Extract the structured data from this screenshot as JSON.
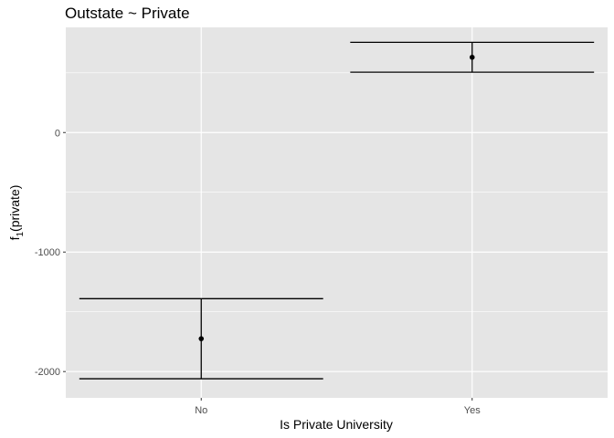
{
  "chart_data": {
    "type": "errorbar",
    "title": "Outstate ~ Private",
    "xlabel": "Is Private University",
    "ylabel": {
      "base": "f",
      "subscript": "1",
      "suffix": "(private)"
    },
    "categories": [
      "No",
      "Yes"
    ],
    "points": [
      {
        "x": "No",
        "y": -1725,
        "ymin": -2060,
        "ymax": -1390
      },
      {
        "x": "Yes",
        "y": 630,
        "ymin": 505,
        "ymax": 755
      }
    ],
    "ylim": [
      -2220,
      880
    ],
    "yticks": [
      -2000,
      -1000,
      0
    ],
    "ytick_labels": [
      "-2000",
      "-1000",
      "0"
    ],
    "grid": true,
    "colors": {
      "panel": "#e5e5e5",
      "grid": "#ffffff",
      "mark": "#000000",
      "tick": "#4d4d4d"
    }
  }
}
